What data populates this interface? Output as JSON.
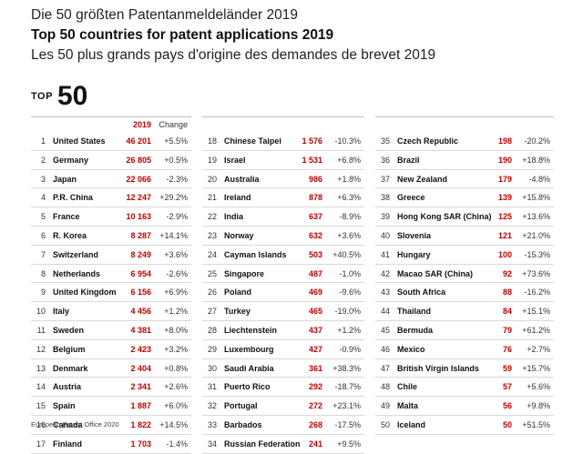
{
  "titles": {
    "de": "Die 50 größten Patentanmeldeländer 2019",
    "en": "Top 50 countries for patent applications 2019",
    "fr": "Les 50 plus grands pays d'origine des demandes de brevet 2019"
  },
  "logo": {
    "small": "TOP",
    "big": "50"
  },
  "header": {
    "year": "2019",
    "change": "Change"
  },
  "columns": [
    {
      "rows": [
        {
          "rank": "1",
          "name": "United States",
          "value": "46 201",
          "change": "+5.5%"
        },
        {
          "rank": "2",
          "name": "Germany",
          "value": "26 805",
          "change": "+0.5%"
        },
        {
          "rank": "3",
          "name": "Japan",
          "value": "22 066",
          "change": "-2.3%"
        },
        {
          "rank": "4",
          "name": "P.R. China",
          "value": "12 247",
          "change": "+29.2%"
        },
        {
          "rank": "5",
          "name": "France",
          "value": "10 163",
          "change": "-2.9%"
        },
        {
          "rank": "6",
          "name": "R. Korea",
          "value": "8 287",
          "change": "+14.1%"
        },
        {
          "rank": "7",
          "name": "Switzerland",
          "value": "8 249",
          "change": "+3.6%"
        },
        {
          "rank": "8",
          "name": "Netherlands",
          "value": "6 954",
          "change": "-2.6%"
        },
        {
          "rank": "9",
          "name": "United Kingdom",
          "value": "6 156",
          "change": "+6.9%"
        },
        {
          "rank": "10",
          "name": "Italy",
          "value": "4 456",
          "change": "+1.2%"
        },
        {
          "rank": "11",
          "name": "Sweden",
          "value": "4 381",
          "change": "+8.0%"
        },
        {
          "rank": "12",
          "name": "Belgium",
          "value": "2 423",
          "change": "+3.2%"
        },
        {
          "rank": "13",
          "name": "Denmark",
          "value": "2 404",
          "change": "+0.8%"
        },
        {
          "rank": "14",
          "name": "Austria",
          "value": "2 341",
          "change": "+2.6%"
        },
        {
          "rank": "15",
          "name": "Spain",
          "value": "1 887",
          "change": "+6.0%"
        },
        {
          "rank": "16",
          "name": "Canada",
          "value": "1 822",
          "change": "+14.5%"
        },
        {
          "rank": "17",
          "name": "Finland",
          "value": "1 703",
          "change": "-1.4%"
        }
      ]
    },
    {
      "rows": [
        {
          "rank": "18",
          "name": "Chinese Taipei",
          "value": "1 576",
          "change": "-10.3%"
        },
        {
          "rank": "19",
          "name": "Israel",
          "value": "1 531",
          "change": "+6.8%"
        },
        {
          "rank": "20",
          "name": "Australia",
          "value": "986",
          "change": "+1.8%"
        },
        {
          "rank": "21",
          "name": "Ireland",
          "value": "878",
          "change": "+6.3%"
        },
        {
          "rank": "22",
          "name": "India",
          "value": "637",
          "change": "-8.9%"
        },
        {
          "rank": "23",
          "name": "Norway",
          "value": "632",
          "change": "+3.6%"
        },
        {
          "rank": "24",
          "name": "Cayman Islands",
          "value": "503",
          "change": "+40.5%"
        },
        {
          "rank": "25",
          "name": "Singapore",
          "value": "487",
          "change": "-1.0%"
        },
        {
          "rank": "26",
          "name": "Poland",
          "value": "469",
          "change": "-9.6%"
        },
        {
          "rank": "27",
          "name": "Turkey",
          "value": "465",
          "change": "-19.0%"
        },
        {
          "rank": "28",
          "name": "Liechtenstein",
          "value": "437",
          "change": "+1.2%"
        },
        {
          "rank": "29",
          "name": "Luxembourg",
          "value": "427",
          "change": "-0.9%"
        },
        {
          "rank": "30",
          "name": "Saudi Arabia",
          "value": "361",
          "change": "+38.3%"
        },
        {
          "rank": "31",
          "name": "Puerto Rico",
          "value": "292",
          "change": "-18.7%"
        },
        {
          "rank": "32",
          "name": "Portugal",
          "value": "272",
          "change": "+23.1%"
        },
        {
          "rank": "33",
          "name": "Barbados",
          "value": "268",
          "change": "-17.5%"
        },
        {
          "rank": "34",
          "name": "Russian Federation",
          "value": "241",
          "change": "+9.5%"
        }
      ]
    },
    {
      "rows": [
        {
          "rank": "35",
          "name": "Czech Republic",
          "value": "198",
          "change": "-20.2%"
        },
        {
          "rank": "36",
          "name": "Brazil",
          "value": "190",
          "change": "+18.8%"
        },
        {
          "rank": "37",
          "name": "New Zealand",
          "value": "179",
          "change": "-4.8%"
        },
        {
          "rank": "38",
          "name": "Greece",
          "value": "139",
          "change": "+15.8%"
        },
        {
          "rank": "39",
          "name": "Hong Kong SAR (China)",
          "value": "125",
          "change": "+13.6%"
        },
        {
          "rank": "40",
          "name": "Slovenia",
          "value": "121",
          "change": "+21.0%"
        },
        {
          "rank": "41",
          "name": "Hungary",
          "value": "100",
          "change": "-15.3%"
        },
        {
          "rank": "42",
          "name": "Macao SAR (China)",
          "value": "92",
          "change": "+73.6%"
        },
        {
          "rank": "43",
          "name": "South Africa",
          "value": "88",
          "change": "-16.2%"
        },
        {
          "rank": "44",
          "name": "Thailand",
          "value": "84",
          "change": "+15.1%"
        },
        {
          "rank": "45",
          "name": "Bermuda",
          "value": "79",
          "change": "+61.2%"
        },
        {
          "rank": "46",
          "name": "Mexico",
          "value": "76",
          "change": "+2.7%"
        },
        {
          "rank": "47",
          "name": "British Virgin Islands",
          "value": "59",
          "change": "+15.7%"
        },
        {
          "rank": "48",
          "name": "Chile",
          "value": "57",
          "change": "+5.6%"
        },
        {
          "rank": "49",
          "name": "Malta",
          "value": "56",
          "change": "+9.8%"
        },
        {
          "rank": "50",
          "name": "Iceland",
          "value": "50",
          "change": "+51.5%"
        }
      ]
    }
  ],
  "footer": "European Patent Office 2020"
}
